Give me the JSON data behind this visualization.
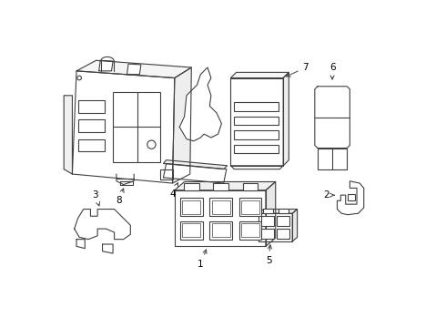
{
  "background_color": "#ffffff",
  "line_color": "#404040",
  "line_width": 0.8,
  "fig_width": 4.9,
  "fig_height": 3.6,
  "dpi": 100
}
